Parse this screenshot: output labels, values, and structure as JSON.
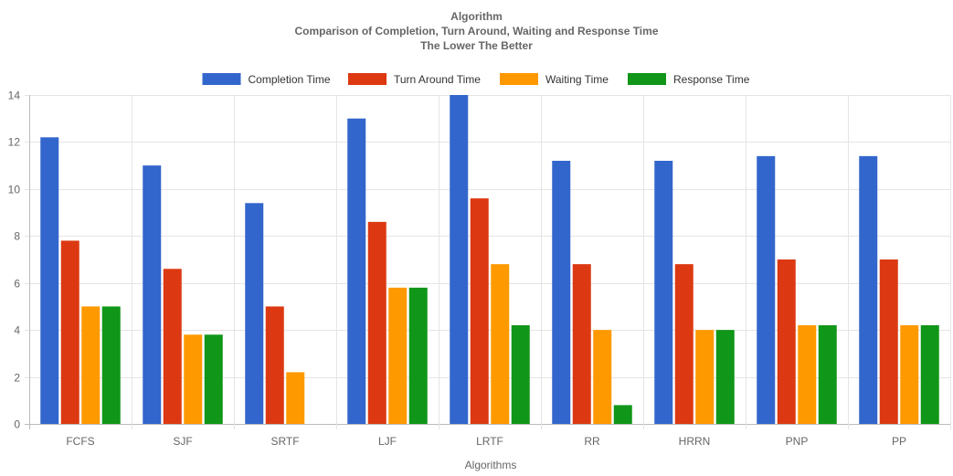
{
  "chart_data": {
    "type": "bar",
    "title_lines": [
      "Algorithm",
      "Comparison of Completion, Turn Around, Waiting and Response Time",
      "The Lower The Better"
    ],
    "xlabel": "Algorithms",
    "ylabel": "",
    "ylim": [
      0,
      14
    ],
    "yticks": [
      0,
      2,
      4,
      6,
      8,
      10,
      12,
      14
    ],
    "grid": true,
    "legend_position": "top",
    "categories": [
      "FCFS",
      "SJF",
      "SRTF",
      "LJF",
      "LRTF",
      "RR",
      "HRRN",
      "PNP",
      "PP"
    ],
    "series": [
      {
        "name": "Completion Time",
        "color": "#3366cc",
        "values": [
          12.2,
          11,
          9.4,
          13,
          14,
          11.2,
          11.2,
          11.4,
          11.4
        ]
      },
      {
        "name": "Turn Around Time",
        "color": "#dc3912",
        "values": [
          7.8,
          6.6,
          5,
          8.6,
          9.6,
          6.8,
          6.8,
          7,
          7
        ]
      },
      {
        "name": "Waiting Time",
        "color": "#ff9900",
        "values": [
          5,
          3.8,
          2.2,
          5.8,
          6.8,
          4,
          4,
          4.2,
          4.2
        ]
      },
      {
        "name": "Response Time",
        "color": "#109618",
        "values": [
          5,
          3.8,
          0,
          5.8,
          4.2,
          0.8,
          4,
          4.2,
          4.2
        ]
      }
    ]
  }
}
